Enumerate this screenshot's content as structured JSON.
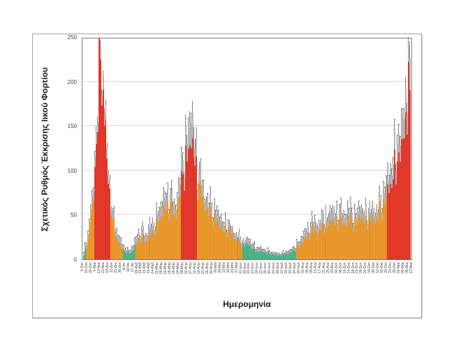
{
  "figure": {
    "background": "#ffffff",
    "frame_border_color": "#a6a6a6",
    "plot_border_color": "#7f7f7f",
    "gridline_color": "#d9d9d9"
  },
  "chart_data": {
    "type": "bar",
    "title": "",
    "xlabel": "Ημερομηνία",
    "ylabel": "Σχετικός Ρυθμός Έκκρισης Ιικού Φορτίου",
    "ylim": [
      0,
      250
    ],
    "yticks": [
      0,
      50,
      100,
      150,
      200,
      250
    ],
    "grid": true,
    "legend": false,
    "error_bars": true,
    "colors": {
      "low": "#4cbe8c",
      "mid": "#f6a02d",
      "high": "#ef3b2c",
      "uncertainty_fill": "#cbcbcb",
      "uncertainty_border": "#8f8f8f",
      "whisker": "#808080"
    },
    "dates": [
      "5-Οκτ",
      "16-Οκτ",
      "26-Οκτ",
      "4-Νοε",
      "13-Νοε",
      "23-Νοε",
      "02-Δεκ",
      "11-Δεκ",
      "21-Δεκ",
      "30-Δεκ",
      "8-Ιαν",
      "18-Ιαν",
      "27-Ιαν",
      "05-Φεβ",
      "10-Φεβ",
      "15-Φεβ",
      "19-Φεβ",
      "24-Φεβ",
      "01-Μαρ",
      "05-Μαρ",
      "10-Μαρ",
      "15-Μαρ",
      "19-Μαρ",
      "24-Μαρ",
      "29-Μαρ",
      "02-Απρ",
      "07-Απρ",
      "12-Απρ",
      "16-Απρ",
      "21-Απρ",
      "26-Απρ",
      "30-Απρ",
      "05-Μαϊ",
      "09-Μαϊ",
      "13-Μαϊ",
      "18-Μαϊ",
      "23-Μαϊ",
      "27-Μαϊ",
      "01-Ιουν",
      "06-Ιουν",
      "10-Ιουν",
      "14-Ιουν",
      "18-Ιουν",
      "22-Ιουν",
      "26-Ιουν",
      "30-Ιουν",
      "04-Ιουλ",
      "08-Ιουλ",
      "12-Ιουλ",
      "16-Ιουλ",
      "20-Ιουλ",
      "24-Ιουλ",
      "28-Ιουλ",
      "01-Αυγ",
      "05-Αυγ",
      "09-Αυγ",
      "13-Αυγ",
      "17-Αυγ",
      "21-Αυγ",
      "25-Αυγ",
      "29-Αυγ",
      "02-Σεπ",
      "06-Σεπ",
      "10-Σεπ",
      "14-Σεπ",
      "18-Σεπ",
      "22-Σεπ",
      "26-Σεπ",
      "30-Σεπ",
      "04-Οκτ",
      "08-Οκτ",
      "12-Οκτ",
      "16-Οκτ",
      "20-Οκτ",
      "24-Οκτ",
      "28-Οκτ",
      "01-Νοε",
      "05-Νοε",
      "09-Νοε",
      "13-Νοε"
    ],
    "values": [
      4,
      22,
      62,
      130,
      225,
      150,
      85,
      45,
      25,
      16,
      8,
      6,
      10,
      18,
      25,
      20,
      32,
      28,
      40,
      48,
      55,
      62,
      50,
      70,
      95,
      110,
      125,
      105,
      85,
      70,
      58,
      48,
      42,
      35,
      30,
      35,
      28,
      22,
      18,
      14,
      16,
      12,
      9,
      10,
      7,
      6,
      5,
      4,
      5,
      6,
      8,
      10,
      14,
      18,
      24,
      30,
      36,
      32,
      40,
      35,
      42,
      38,
      45,
      40,
      48,
      42,
      38,
      45,
      40,
      44,
      50,
      47,
      55,
      62,
      75,
      90,
      110,
      135,
      165,
      190
    ],
    "uppers": [
      9,
      32,
      78,
      150,
      246,
      170,
      100,
      58,
      35,
      24,
      13,
      10,
      16,
      28,
      38,
      30,
      48,
      42,
      55,
      65,
      75,
      80,
      68,
      92,
      120,
      140,
      165,
      135,
      110,
      90,
      75,
      64,
      56,
      48,
      42,
      46,
      38,
      31,
      26,
      20,
      23,
      18,
      14,
      15,
      11,
      10,
      8,
      7,
      8,
      10,
      12,
      15,
      20,
      26,
      34,
      42,
      50,
      45,
      56,
      48,
      58,
      52,
      62,
      55,
      66,
      58,
      52,
      60,
      54,
      58,
      66,
      62,
      72,
      82,
      95,
      115,
      140,
      170,
      205,
      245
    ],
    "levels": [
      "l",
      "m",
      "m",
      "h",
      "h",
      "h",
      "h",
      "m",
      "m",
      "m",
      "l",
      "l",
      "l",
      "m",
      "m",
      "m",
      "m",
      "m",
      "m",
      "m",
      "m",
      "m",
      "m",
      "m",
      "h",
      "h",
      "h",
      "h",
      "m",
      "m",
      "m",
      "m",
      "m",
      "m",
      "m",
      "m",
      "m",
      "m",
      "m",
      "l",
      "l",
      "l",
      "l",
      "l",
      "l",
      "l",
      "l",
      "l",
      "l",
      "l",
      "l",
      "l",
      "m",
      "m",
      "m",
      "m",
      "m",
      "m",
      "m",
      "m",
      "m",
      "m",
      "m",
      "m",
      "m",
      "m",
      "m",
      "m",
      "m",
      "m",
      "m",
      "m",
      "m",
      "m",
      "h",
      "h",
      "h",
      "h",
      "h",
      "h"
    ]
  }
}
